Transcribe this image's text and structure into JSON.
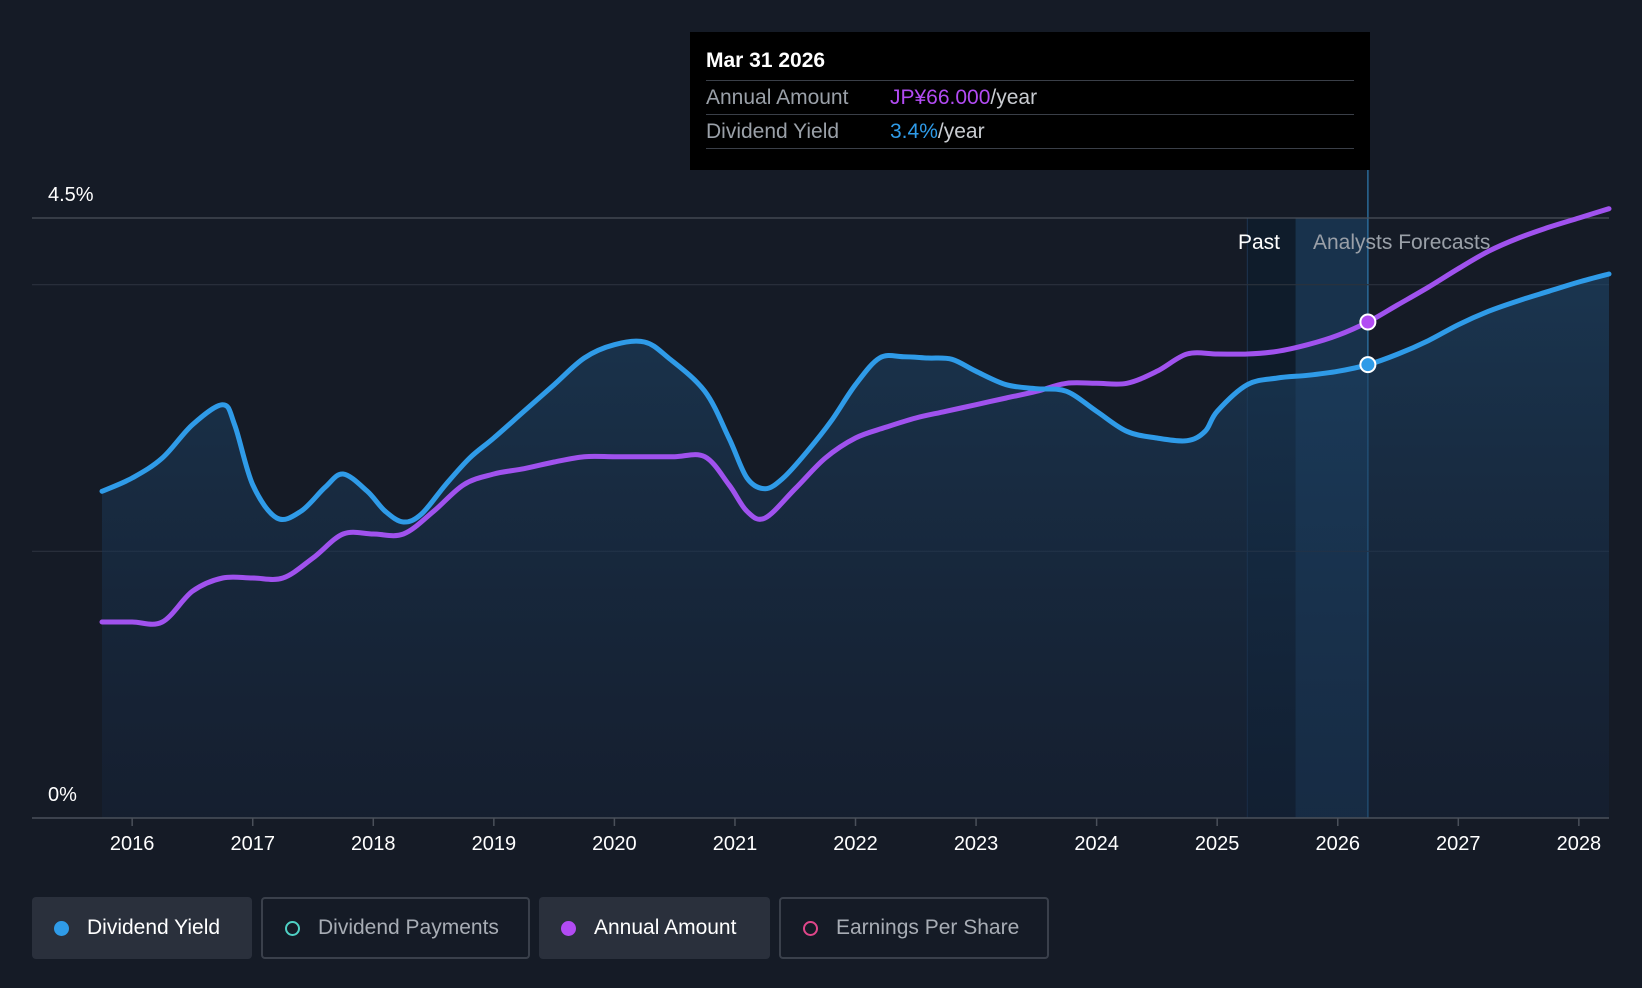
{
  "tooltip": {
    "date": "Mar 31 2026",
    "rows": [
      {
        "key": "Annual Amount",
        "value": "JP¥66.000",
        "unit": "/year"
      },
      {
        "key": "Dividend Yield",
        "value": "3.4%",
        "unit": "/year"
      }
    ]
  },
  "regions": {
    "past_label": "Past",
    "forecast_label": "Analysts Forecasts"
  },
  "legend": [
    {
      "label": "Dividend Yield",
      "color": "#2f9be8",
      "active": true
    },
    {
      "label": "Dividend Payments",
      "color": "#4fd1c5",
      "active": false
    },
    {
      "label": "Annual Amount",
      "color": "#b24bf3",
      "active": true
    },
    {
      "label": "Earnings Per Share",
      "color": "#e0468a",
      "active": false
    }
  ],
  "colors": {
    "yield": "#2f9be8",
    "amount": "#a052ee",
    "past_band": "#0f1c2b",
    "forecast_band": "#18324c"
  },
  "chart_data": {
    "type": "line",
    "title": "",
    "xlabel": "",
    "ylabel": "",
    "xlim": [
      2015.7,
      2028.25
    ],
    "ylim": [
      0,
      4.5
    ],
    "ytick_labels": [
      {
        "value": 4.5,
        "label": "4.5%"
      },
      {
        "value": 0,
        "label": "0%"
      }
    ],
    "gridlines": [
      4.5,
      4.0,
      2.0
    ],
    "xticks": [
      2016,
      2017,
      2018,
      2019,
      2020,
      2021,
      2022,
      2023,
      2024,
      2025,
      2026,
      2027,
      2028
    ],
    "past_region": [
      2025.25,
      2025.65
    ],
    "forecast_region": [
      2025.65,
      2026.25
    ],
    "selected_x": 2026.25,
    "series": [
      {
        "name": "Dividend Yield",
        "unit": "%",
        "points": [
          [
            2015.75,
            2.45
          ],
          [
            2016.0,
            2.55
          ],
          [
            2016.25,
            2.7
          ],
          [
            2016.5,
            2.95
          ],
          [
            2016.75,
            3.1
          ],
          [
            2016.85,
            2.95
          ],
          [
            2017.0,
            2.5
          ],
          [
            2017.2,
            2.25
          ],
          [
            2017.4,
            2.3
          ],
          [
            2017.6,
            2.48
          ],
          [
            2017.75,
            2.58
          ],
          [
            2017.95,
            2.45
          ],
          [
            2018.1,
            2.3
          ],
          [
            2018.25,
            2.22
          ],
          [
            2018.4,
            2.28
          ],
          [
            2018.6,
            2.5
          ],
          [
            2018.8,
            2.7
          ],
          [
            2019.0,
            2.85
          ],
          [
            2019.25,
            3.05
          ],
          [
            2019.5,
            3.25
          ],
          [
            2019.75,
            3.45
          ],
          [
            2020.0,
            3.55
          ],
          [
            2020.25,
            3.57
          ],
          [
            2020.45,
            3.45
          ],
          [
            2020.75,
            3.2
          ],
          [
            2020.95,
            2.85
          ],
          [
            2021.1,
            2.55
          ],
          [
            2021.25,
            2.47
          ],
          [
            2021.4,
            2.55
          ],
          [
            2021.6,
            2.75
          ],
          [
            2021.8,
            2.98
          ],
          [
            2022.0,
            3.25
          ],
          [
            2022.2,
            3.45
          ],
          [
            2022.4,
            3.46
          ],
          [
            2022.6,
            3.45
          ],
          [
            2022.8,
            3.44
          ],
          [
            2023.0,
            3.35
          ],
          [
            2023.25,
            3.25
          ],
          [
            2023.5,
            3.22
          ],
          [
            2023.75,
            3.2
          ],
          [
            2024.0,
            3.05
          ],
          [
            2024.25,
            2.9
          ],
          [
            2024.5,
            2.85
          ],
          [
            2024.75,
            2.83
          ],
          [
            2024.9,
            2.9
          ],
          [
            2025.0,
            3.05
          ],
          [
            2025.25,
            3.25
          ],
          [
            2025.5,
            3.3
          ],
          [
            2025.75,
            3.32
          ],
          [
            2026.0,
            3.35
          ],
          [
            2026.25,
            3.4
          ],
          [
            2026.5,
            3.48
          ],
          [
            2026.75,
            3.58
          ],
          [
            2027.0,
            3.7
          ],
          [
            2027.25,
            3.8
          ],
          [
            2027.5,
            3.88
          ],
          [
            2027.75,
            3.95
          ],
          [
            2028.0,
            4.02
          ],
          [
            2028.25,
            4.08
          ]
        ]
      },
      {
        "name": "Annual Amount",
        "unit": "JP¥",
        "points": [
          [
            2015.75,
            1.47
          ],
          [
            2016.0,
            1.47
          ],
          [
            2016.25,
            1.47
          ],
          [
            2016.5,
            1.7
          ],
          [
            2016.75,
            1.8
          ],
          [
            2017.0,
            1.8
          ],
          [
            2017.25,
            1.8
          ],
          [
            2017.5,
            1.95
          ],
          [
            2017.75,
            2.13
          ],
          [
            2018.0,
            2.13
          ],
          [
            2018.25,
            2.13
          ],
          [
            2018.5,
            2.3
          ],
          [
            2018.75,
            2.5
          ],
          [
            2019.0,
            2.58
          ],
          [
            2019.25,
            2.62
          ],
          [
            2019.5,
            2.67
          ],
          [
            2019.75,
            2.71
          ],
          [
            2020.0,
            2.71
          ],
          [
            2020.25,
            2.71
          ],
          [
            2020.5,
            2.71
          ],
          [
            2020.75,
            2.71
          ],
          [
            2020.95,
            2.5
          ],
          [
            2021.1,
            2.3
          ],
          [
            2021.25,
            2.25
          ],
          [
            2021.5,
            2.47
          ],
          [
            2021.75,
            2.7
          ],
          [
            2022.0,
            2.85
          ],
          [
            2022.25,
            2.93
          ],
          [
            2022.5,
            3.0
          ],
          [
            2022.75,
            3.05
          ],
          [
            2023.0,
            3.1
          ],
          [
            2023.25,
            3.15
          ],
          [
            2023.5,
            3.2
          ],
          [
            2023.75,
            3.26
          ],
          [
            2024.0,
            3.26
          ],
          [
            2024.25,
            3.26
          ],
          [
            2024.5,
            3.35
          ],
          [
            2024.75,
            3.48
          ],
          [
            2025.0,
            3.48
          ],
          [
            2025.25,
            3.48
          ],
          [
            2025.5,
            3.5
          ],
          [
            2025.75,
            3.55
          ],
          [
            2026.0,
            3.62
          ],
          [
            2026.25,
            3.72
          ],
          [
            2026.5,
            3.85
          ],
          [
            2026.75,
            3.98
          ],
          [
            2027.0,
            4.12
          ],
          [
            2027.25,
            4.25
          ],
          [
            2027.5,
            4.35
          ],
          [
            2027.75,
            4.43
          ],
          [
            2028.0,
            4.5
          ],
          [
            2028.25,
            4.57
          ]
        ]
      }
    ]
  }
}
